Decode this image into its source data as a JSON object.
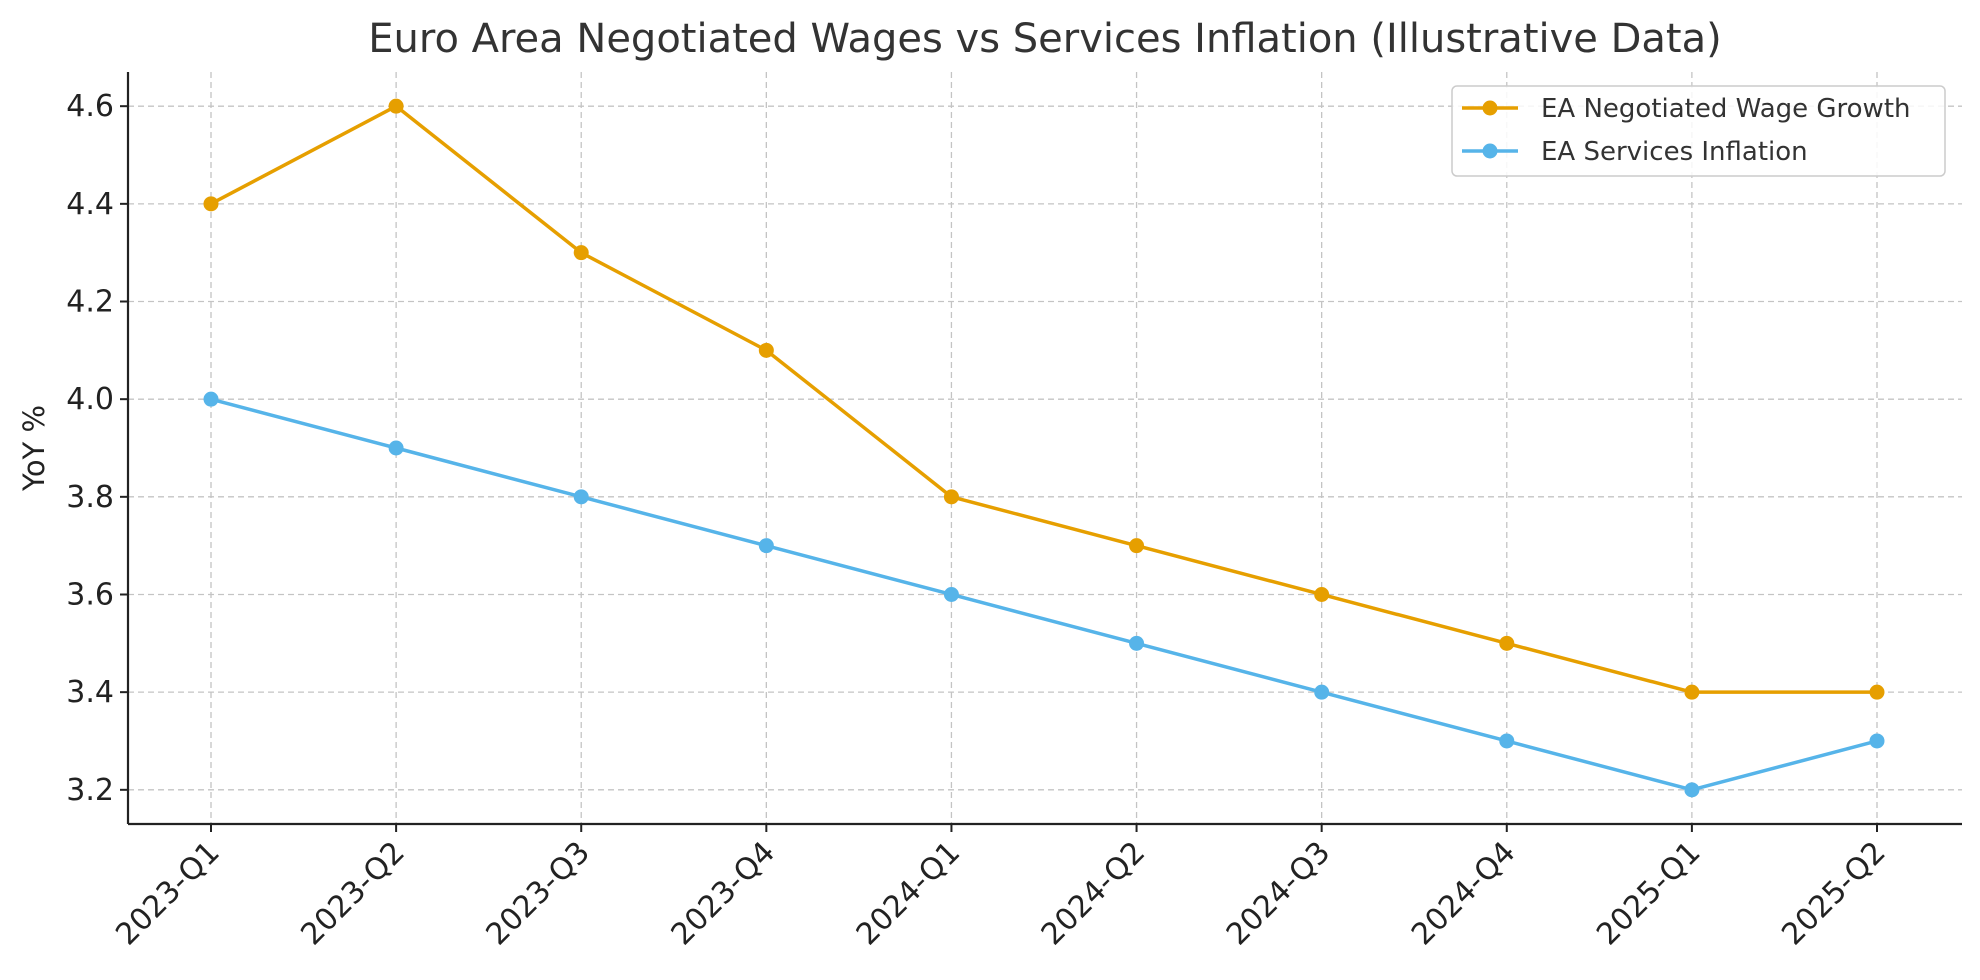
{
  "chart_data": {
    "type": "line",
    "title": "Euro Area Negotiated Wages vs Services Inflation (Illustrative Data)",
    "xlabel": "",
    "ylabel": "YoY %",
    "categories": [
      "2023-Q1",
      "2023-Q2",
      "2023-Q3",
      "2023-Q4",
      "2024-Q1",
      "2024-Q2",
      "2024-Q3",
      "2024-Q4",
      "2025-Q1",
      "2025-Q2"
    ],
    "ylim": [
      3.13,
      4.67
    ],
    "yticks": [
      3.2,
      3.4,
      3.6,
      3.8,
      4.0,
      4.2,
      4.4,
      4.6
    ],
    "ytick_labels": [
      "3.2",
      "3.4",
      "3.6",
      "3.8",
      "4.0",
      "4.2",
      "4.4",
      "4.6"
    ],
    "grid": true,
    "legend_position": "top-right",
    "series": [
      {
        "name": "EA Negotiated Wage Growth",
        "color": "#E69F00",
        "values": [
          4.4,
          4.6,
          4.3,
          4.1,
          3.8,
          3.7,
          3.6,
          3.5,
          3.4,
          3.4
        ]
      },
      {
        "name": "EA Services Inflation",
        "color": "#56B4E9",
        "values": [
          4.0,
          3.9,
          3.8,
          3.7,
          3.6,
          3.5,
          3.4,
          3.3,
          3.2,
          3.3
        ]
      }
    ]
  }
}
